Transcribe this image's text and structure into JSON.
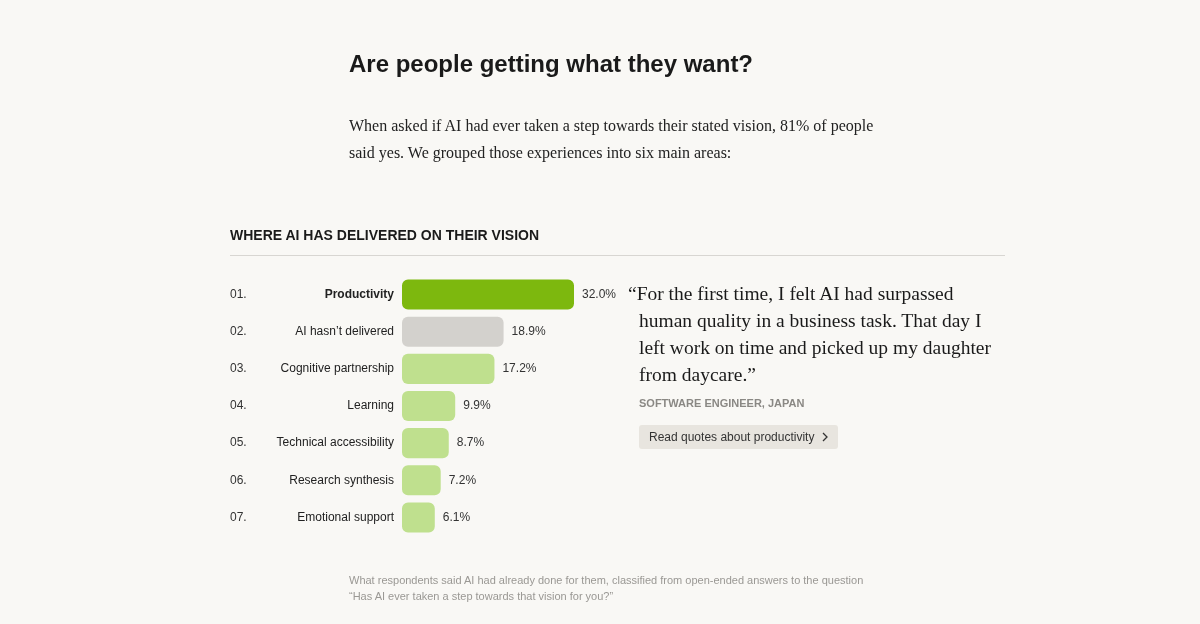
{
  "chart_data": {
    "type": "bar",
    "orientation": "horizontal",
    "title": "Are people getting what they want?",
    "subtitle": "When asked if AI had ever taken a step towards their stated vision, 81% of people said yes. We grouped those experiences into six main areas:",
    "categories": [
      "Productivity",
      "AI hasn’t delivered",
      "Cognitive partnership",
      "Learning",
      "Technical accessibility",
      "Research synthesis",
      "Emotional support"
    ],
    "values": [
      32.0,
      18.9,
      17.2,
      9.9,
      8.7,
      7.2,
      6.1
    ],
    "colors": [
      "#7db80e",
      "#d3d1cd",
      "#bfe08e",
      "#bfe08e",
      "#bfe08e",
      "#bfe08e",
      "#bfe08e"
    ],
    "value_labels": [
      "32.0%",
      "18.9%",
      "17.2%",
      "9.9%",
      "8.7%",
      "7.2%",
      "6.1%"
    ],
    "xlim": [
      0,
      32
    ],
    "tick_labels": false,
    "grid": false,
    "legend": false,
    "annotations": [
      "WHERE AI HAS DELIVERED ON THEIR VISION",
      "01.",
      "02.",
      "03.",
      "04.",
      "05.",
      "06.",
      "07.",
      "“For the first time, I felt AI had surpassed human quality in a business task. That day I left work on time and picked up my daughter from daycare.”",
      "SOFTWARE ENGINEER, JAPAN",
      "Read quotes about productivity",
      "What respondents said AI had already done for them, classified from open-ended answers to the question “Has AI ever taken a step towards that vision for you?”"
    ]
  }
}
